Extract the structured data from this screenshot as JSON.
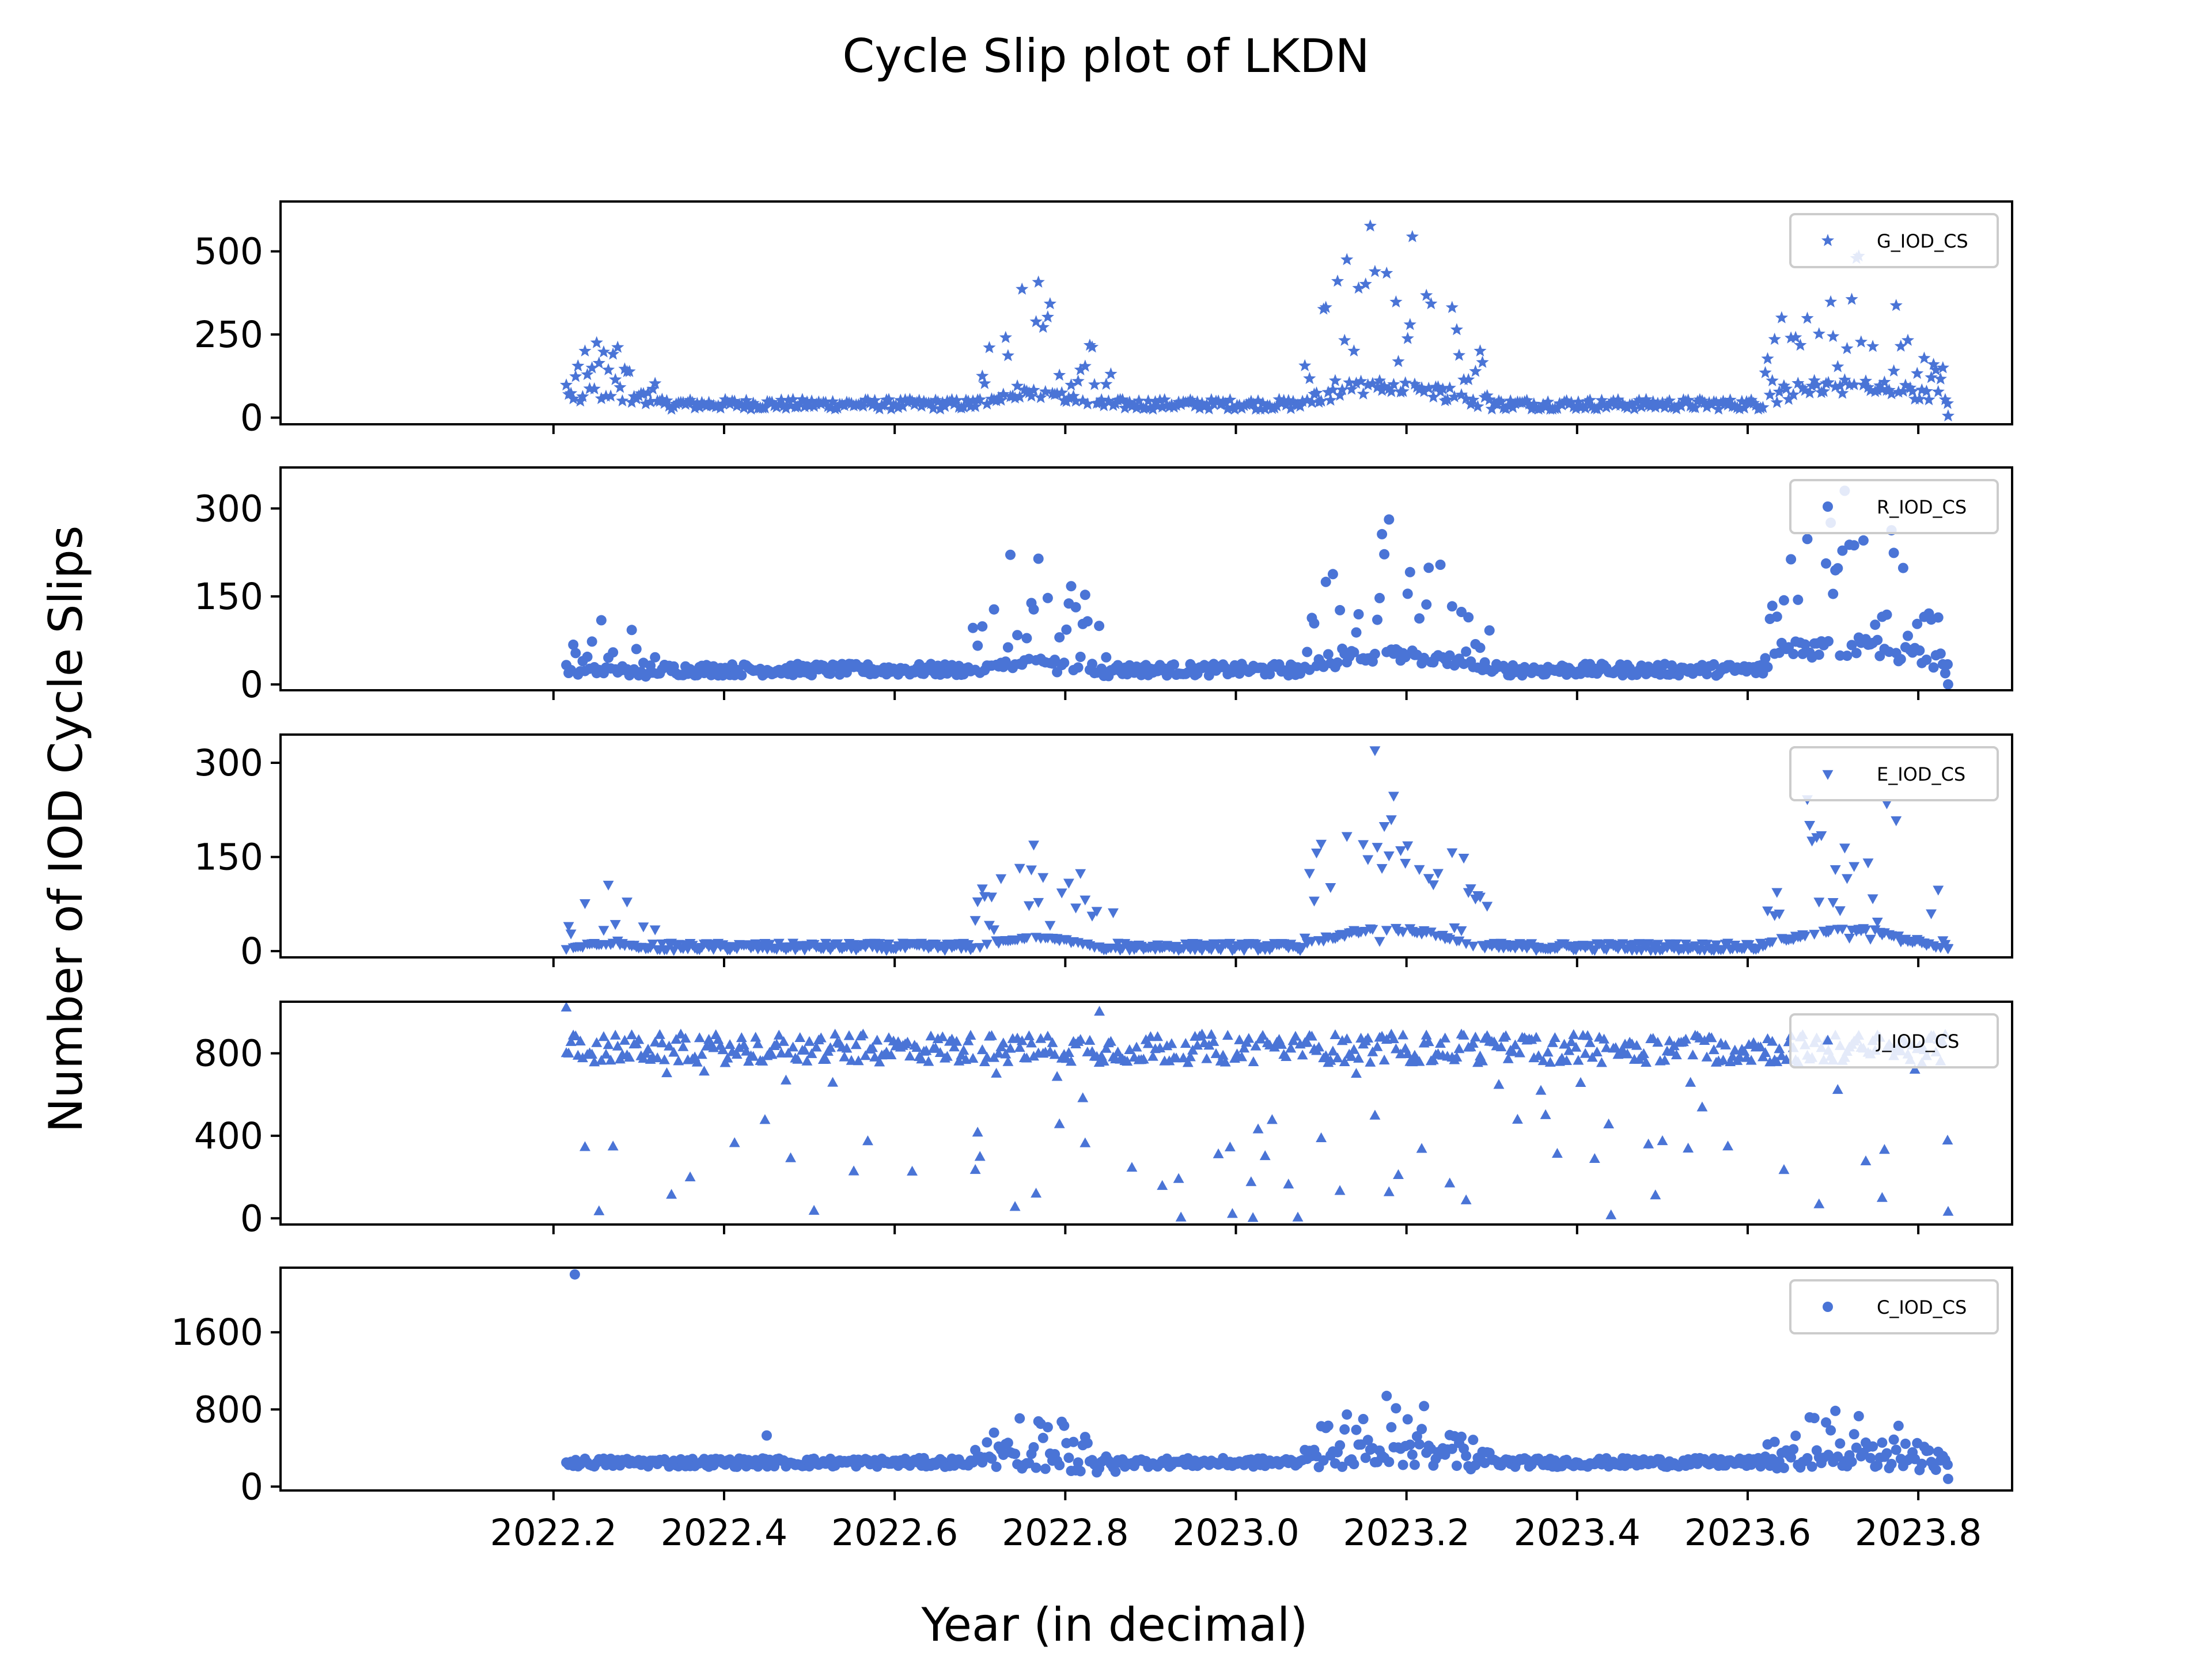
{
  "title": "Cycle Slip plot of LKDN",
  "xlabel": "Year (in decimal)",
  "ylabel": "Number of IOD Cycle Slips",
  "colors": {
    "marker": "#4a74d6",
    "axes": "#000000"
  },
  "chart_data": {
    "type": "scatter",
    "xlim": [
      2021.88,
      2023.91
    ],
    "xticks": [
      2022.2,
      2022.4,
      2022.6,
      2022.8,
      2023.0,
      2023.2,
      2023.4,
      2023.6,
      2023.8
    ],
    "xtick_labels": [
      "2022.2",
      "2022.4",
      "2022.6",
      "2022.8",
      "2023.0",
      "2023.2",
      "2023.4",
      "2023.6",
      "2023.8"
    ],
    "xstart": 2022.215,
    "xend": 2023.835,
    "step": 0.00274,
    "panels": [
      {
        "name": "G_IOD_CS",
        "marker": "star",
        "legend": "G_IOD_CS",
        "ylim": [
          -20,
          650
        ],
        "yticks": [
          0,
          250,
          500
        ],
        "ytick_labels": [
          "0",
          "250",
          "500"
        ],
        "bumps": [
          {
            "start": 2022.215,
            "end": 2022.32,
            "base": 60,
            "peak": 260,
            "spread": 0.9
          },
          {
            "start": 2022.69,
            "end": 2022.86,
            "base": 40,
            "peak": 410,
            "spread": 0.8
          },
          {
            "start": 2023.08,
            "end": 2023.3,
            "base": 50,
            "peak": 620,
            "spread": 0.85
          },
          {
            "start": 2023.62,
            "end": 2023.83,
            "base": 60,
            "peak": 520,
            "spread": 0.85
          }
        ],
        "quiet": 40,
        "noise": 15,
        "points_extra": [
          [
            2023.835,
            5
          ]
        ]
      },
      {
        "name": "R_IOD_CS",
        "marker": "circle",
        "legend": "R_IOD_CS",
        "ylim": [
          -10,
          370
        ],
        "yticks": [
          0,
          150,
          300
        ],
        "ytick_labels": [
          "0",
          "150",
          "300"
        ],
        "bumps": [
          {
            "start": 2022.215,
            "end": 2022.32,
            "base": 15,
            "peak": 140,
            "spread": 0.8
          },
          {
            "start": 2022.69,
            "end": 2022.86,
            "base": 20,
            "peak": 255,
            "spread": 0.8
          },
          {
            "start": 2023.08,
            "end": 2023.3,
            "base": 30,
            "peak": 295,
            "spread": 0.85
          },
          {
            "start": 2023.62,
            "end": 2023.83,
            "base": 40,
            "peak": 350,
            "spread": 0.85
          }
        ],
        "quiet": 25,
        "noise": 10,
        "points_extra": [
          [
            2023.835,
            0
          ]
        ]
      },
      {
        "name": "E_IOD_CS",
        "marker": "tri-down",
        "legend": "E_IOD_CS",
        "ylim": [
          -10,
          345
        ],
        "yticks": [
          0,
          150,
          300
        ],
        "ytick_labels": [
          "0",
          "150",
          "300"
        ],
        "bumps": [
          {
            "start": 2022.215,
            "end": 2022.32,
            "base": 5,
            "peak": 110,
            "spread": 0.8
          },
          {
            "start": 2022.69,
            "end": 2022.86,
            "base": 5,
            "peak": 210,
            "spread": 0.8
          },
          {
            "start": 2023.08,
            "end": 2023.3,
            "base": 10,
            "peak": 335,
            "spread": 0.85
          },
          {
            "start": 2023.62,
            "end": 2023.83,
            "base": 10,
            "peak": 330,
            "spread": 0.85
          }
        ],
        "quiet": 8,
        "noise": 6,
        "points_extra": [
          [
            2023.835,
            5
          ]
        ]
      },
      {
        "name": "J_IOD_CS",
        "marker": "tri-up",
        "legend": "J_IOD_CS",
        "ylim": [
          -30,
          1050
        ],
        "yticks": [
          0,
          400,
          800
        ],
        "ytick_labels": [
          "0",
          "400",
          "800"
        ],
        "level": 820,
        "noise": 70,
        "dip_rate": 0.13,
        "dip_min": 0,
        "dip_max": 720,
        "points_extra": [
          [
            2022.215,
            1020
          ],
          [
            2022.84,
            1000
          ],
          [
            2023.02,
            0
          ],
          [
            2023.835,
            30
          ]
        ]
      },
      {
        "name": "C_IOD_CS",
        "marker": "circle",
        "legend": "C_IOD_CS",
        "ylim": [
          -40,
          2270
        ],
        "yticks": [
          0,
          800,
          1600
        ],
        "ytick_labels": [
          "0",
          "800",
          "1600"
        ],
        "bumps": [
          {
            "start": 2022.69,
            "end": 2022.86,
            "base": 220,
            "peak": 750,
            "spread": 0.7
          },
          {
            "start": 2023.08,
            "end": 2023.3,
            "base": 280,
            "peak": 960,
            "spread": 0.75
          },
          {
            "start": 2023.62,
            "end": 2023.83,
            "base": 260,
            "peak": 820,
            "spread": 0.75
          }
        ],
        "quiet": 250,
        "noise": 45,
        "points_extra": [
          [
            2022.225,
            2200
          ],
          [
            2022.45,
            530
          ],
          [
            2023.835,
            80
          ]
        ]
      }
    ]
  }
}
